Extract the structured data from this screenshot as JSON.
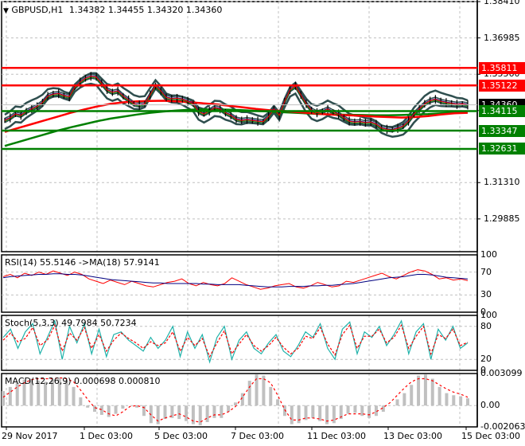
{
  "header": {
    "menu_arrow": "▼",
    "symbol": "GBPUSD,H1",
    "ohlc": "1.34382 1.34455 1.34320 1.34360"
  },
  "colors": {
    "grid": "#c0c0c0",
    "support": "#008000",
    "resistance": "#ff0000",
    "bollinger": "#2f4f4f",
    "current_price_bg": "#000000",
    "rsi": "#ff0000",
    "rsi_ma": "#000080",
    "stoch_main": "#20b2aa",
    "stoch_signal": "#ff0000",
    "macd_hist": "#c0c0c0",
    "macd_signal": "#ff0000"
  },
  "chart_data": [
    {
      "type": "line",
      "title": "GBPUSD,H1 1.34382 1.34455 1.34320 1.34360",
      "panel": "main",
      "ylim": [
        1.286,
        1.3841
      ],
      "y_ticks": [
        "1.38410",
        "1.36985",
        "1.35560",
        "1.34135",
        "1.31310",
        "1.29885"
      ],
      "price_levels": [
        {
          "label": "1.35811",
          "value": 1.35811,
          "color": "#ff0000",
          "kind": "resistance"
        },
        {
          "label": "1.35122",
          "value": 1.35122,
          "color": "#ff0000",
          "kind": "resistance"
        },
        {
          "label": "1.34360",
          "value": 1.3436,
          "color": "#000000",
          "kind": "current"
        },
        {
          "label": "1.34115",
          "value": 1.34115,
          "color": "#008000",
          "kind": "support"
        },
        {
          "label": "1.33347",
          "value": 1.33347,
          "color": "#008000",
          "kind": "support"
        },
        {
          "label": "1.32631",
          "value": 1.32631,
          "color": "#008000",
          "kind": "support"
        }
      ],
      "x_labels": [
        "29 Nov 2017",
        "1 Dec 03:00",
        "5 Dec 03:00",
        "7 Dec 03:00",
        "11 Dec 03:00",
        "13 Dec 03:00",
        "15 Dec 03:00"
      ],
      "close_series": [
        1.3375,
        1.3385,
        1.34,
        1.3395,
        1.341,
        1.342,
        1.343,
        1.3445,
        1.347,
        1.3478,
        1.348,
        1.3472,
        1.3468,
        1.3505,
        1.3525,
        1.354,
        1.3548,
        1.3545,
        1.352,
        1.3495,
        1.3485,
        1.349,
        1.347,
        1.3455,
        1.344,
        1.3435,
        1.344,
        1.3475,
        1.351,
        1.349,
        1.3465,
        1.346,
        1.3462,
        1.3458,
        1.345,
        1.344,
        1.341,
        1.34,
        1.3412,
        1.3425,
        1.342,
        1.3405,
        1.3395,
        1.338,
        1.3375,
        1.3378,
        1.3375,
        1.3372,
        1.337,
        1.339,
        1.342,
        1.3395,
        1.345,
        1.3495,
        1.351,
        1.3475,
        1.344,
        1.3415,
        1.3405,
        1.341,
        1.342,
        1.3408,
        1.34,
        1.3385,
        1.3372,
        1.3368,
        1.337,
        1.3366,
        1.3368,
        1.336,
        1.3345,
        1.334,
        1.3338,
        1.3344,
        1.3352,
        1.3372,
        1.34,
        1.342,
        1.344,
        1.3452,
        1.3458,
        1.345,
        1.3445,
        1.3442,
        1.3438,
        1.344,
        1.3436
      ],
      "ma_red": [
        1.333,
        1.3345,
        1.336,
        1.3375,
        1.339,
        1.3405,
        1.3418,
        1.343,
        1.344,
        1.3446,
        1.345,
        1.3451,
        1.3452,
        1.345,
        1.3446,
        1.3442,
        1.3438,
        1.3432,
        1.3426,
        1.342,
        1.3415,
        1.3412,
        1.3408,
        1.3404,
        1.34,
        1.3397,
        1.3395,
        1.3393,
        1.339,
        1.3388,
        1.3386,
        1.3388,
        1.3392,
        1.3398,
        1.3403,
        1.3405
      ],
      "ma_green": [
        1.3275,
        1.329,
        1.3305,
        1.332,
        1.3335,
        1.3348,
        1.336,
        1.3372,
        1.3382,
        1.339,
        1.3398,
        1.3405,
        1.341,
        1.3414,
        1.3417,
        1.3418,
        1.3418,
        1.3417,
        1.3415,
        1.3412,
        1.341,
        1.3407,
        1.3405,
        1.3402,
        1.34,
        1.3398,
        1.3397,
        1.3396,
        1.3395,
        1.3395,
        1.3396,
        1.3398,
        1.34,
        1.3403,
        1.3406,
        1.3408
      ]
    },
    {
      "type": "line",
      "panel": "rsi",
      "title": "RSI(14) 55.5146  ->MA(18) 57.9141",
      "ylim": [
        0,
        100
      ],
      "y_ticks": [
        "100",
        "70",
        "30",
        "0"
      ],
      "series": [
        {
          "name": "RSI(14)",
          "color": "#ff0000",
          "values": [
            62,
            66,
            60,
            68,
            64,
            70,
            66,
            72,
            68,
            64,
            70,
            66,
            58,
            54,
            50,
            56,
            52,
            48,
            54,
            50,
            46,
            44,
            48,
            52,
            54,
            58,
            50,
            46,
            52,
            48,
            46,
            50,
            60,
            54,
            48,
            44,
            40,
            42,
            46,
            48,
            50,
            44,
            42,
            46,
            52,
            48,
            44,
            46,
            54,
            52,
            56,
            60,
            64,
            68,
            62,
            58,
            64,
            70,
            74,
            72,
            66,
            58,
            60,
            56,
            58,
            55
          ]
        },
        {
          "name": "MA(18)",
          "color": "#000080",
          "values": [
            60,
            62,
            63,
            64,
            65,
            66,
            66,
            67,
            67,
            66,
            66,
            65,
            63,
            61,
            59,
            57,
            56,
            55,
            54,
            53,
            52,
            51,
            51,
            50,
            50,
            50,
            50,
            50,
            49,
            49,
            48,
            48,
            48,
            48,
            47,
            46,
            45,
            44,
            44,
            44,
            45,
            45,
            45,
            46,
            46,
            47,
            47,
            48,
            49,
            50,
            52,
            54,
            56,
            58,
            60,
            61,
            62,
            64,
            66,
            66,
            65,
            63,
            61,
            60,
            59,
            58
          ]
        }
      ]
    },
    {
      "type": "line",
      "panel": "stoch",
      "title": "Stoch(5,3,3) 49.7984 50.7234",
      "ylim": [
        0,
        100
      ],
      "y_ticks": [
        "100",
        "80",
        "20",
        "0"
      ],
      "series": [
        {
          "name": "%K",
          "color": "#20b2aa",
          "values": [
            60,
            75,
            40,
            70,
            85,
            30,
            60,
            90,
            20,
            80,
            50,
            85,
            30,
            75,
            25,
            65,
            70,
            55,
            45,
            35,
            60,
            40,
            55,
            80,
            25,
            70,
            40,
            65,
            15,
            60,
            80,
            20,
            55,
            70,
            40,
            30,
            50,
            65,
            35,
            25,
            45,
            70,
            60,
            85,
            40,
            20,
            75,
            88,
            30,
            70,
            60,
            80,
            45,
            65,
            90,
            30,
            70,
            85,
            20,
            75,
            55,
            80,
            40,
            50
          ]
        },
        {
          "name": "%D",
          "color": "#ff0000",
          "values": [
            55,
            68,
            52,
            58,
            78,
            45,
            55,
            82,
            35,
            68,
            55,
            78,
            40,
            65,
            35,
            55,
            68,
            58,
            50,
            40,
            52,
            45,
            50,
            70,
            35,
            60,
            45,
            58,
            25,
            50,
            72,
            30,
            48,
            65,
            45,
            35,
            45,
            60,
            42,
            30,
            40,
            62,
            58,
            78,
            48,
            28,
            65,
            82,
            40,
            62,
            62,
            75,
            50,
            60,
            82,
            40,
            62,
            80,
            30,
            65,
            58,
            75,
            45,
            51
          ]
        }
      ]
    },
    {
      "type": "bar",
      "panel": "macd",
      "title": "MACD(12,26,9) 0.000698 0.000810",
      "ylim": [
        -0.002063,
        0.003099
      ],
      "y_ticks": [
        "0.003099",
        "0.00",
        "-0.002063"
      ],
      "series": [
        {
          "name": "MACD histogram",
          "color": "#c0c0c0",
          "values": [
            0.0014,
            0.0018,
            0.0022,
            0.0025,
            0.0026,
            0.0024,
            0.0023,
            0.0025,
            0.0027,
            0.0024,
            0.0018,
            0.0008,
            -0.0002,
            -0.0006,
            -0.0009,
            -0.0011,
            -0.0008,
            -0.0003,
            0.0,
            -0.0002,
            -0.001,
            -0.0017,
            -0.0018,
            -0.0013,
            -0.0012,
            -0.0013,
            -0.0015,
            -0.0018,
            -0.0019,
            -0.0016,
            -0.0012,
            -0.0012,
            -0.0006,
            0.0003,
            0.0012,
            0.0024,
            0.003,
            0.0029,
            0.0018,
            0.0006,
            -0.001,
            -0.0018,
            -0.0017,
            -0.0014,
            -0.0012,
            -0.0015,
            -0.0018,
            -0.0017,
            -0.0013,
            -0.0008,
            -0.0007,
            -0.001,
            -0.0012,
            -0.001,
            -0.0006,
            0.0,
            0.0006,
            0.0012,
            0.002,
            0.0029,
            0.003,
            0.0026,
            0.0018,
            0.0012,
            0.001,
            0.0009,
            0.0007
          ]
        },
        {
          "name": "Signal",
          "color": "#ff0000",
          "values": [
            0.0008,
            0.0013,
            0.0018,
            0.0022,
            0.0025,
            0.0026,
            0.0026,
            0.0026,
            0.0027,
            0.0026,
            0.0023,
            0.0015,
            0.0006,
            -0.0002,
            -0.0004,
            -0.0008,
            -0.001,
            -0.0006,
            -0.0001,
            0.0,
            -0.0002,
            -0.0009,
            -0.0015,
            -0.0012,
            -0.001,
            -0.0008,
            -0.0011,
            -0.0015,
            -0.0016,
            -0.0012,
            -0.0009,
            -0.0009,
            -0.0006,
            -0.0001,
            0.0008,
            0.0018,
            0.0026,
            0.0026,
            0.0022,
            0.001,
            -0.0004,
            -0.0014,
            -0.0014,
            -0.0012,
            -0.0012,
            -0.0013,
            -0.0015,
            -0.0014,
            -0.0011,
            -0.0008,
            -0.0008,
            -0.0008,
            -0.0009,
            -0.0006,
            -0.0002,
            0.0003,
            0.001,
            0.0017,
            0.0023,
            0.0026,
            0.0026,
            0.0024,
            0.002,
            0.0016,
            0.0013,
            0.0011,
            0.0008
          ]
        }
      ]
    }
  ]
}
